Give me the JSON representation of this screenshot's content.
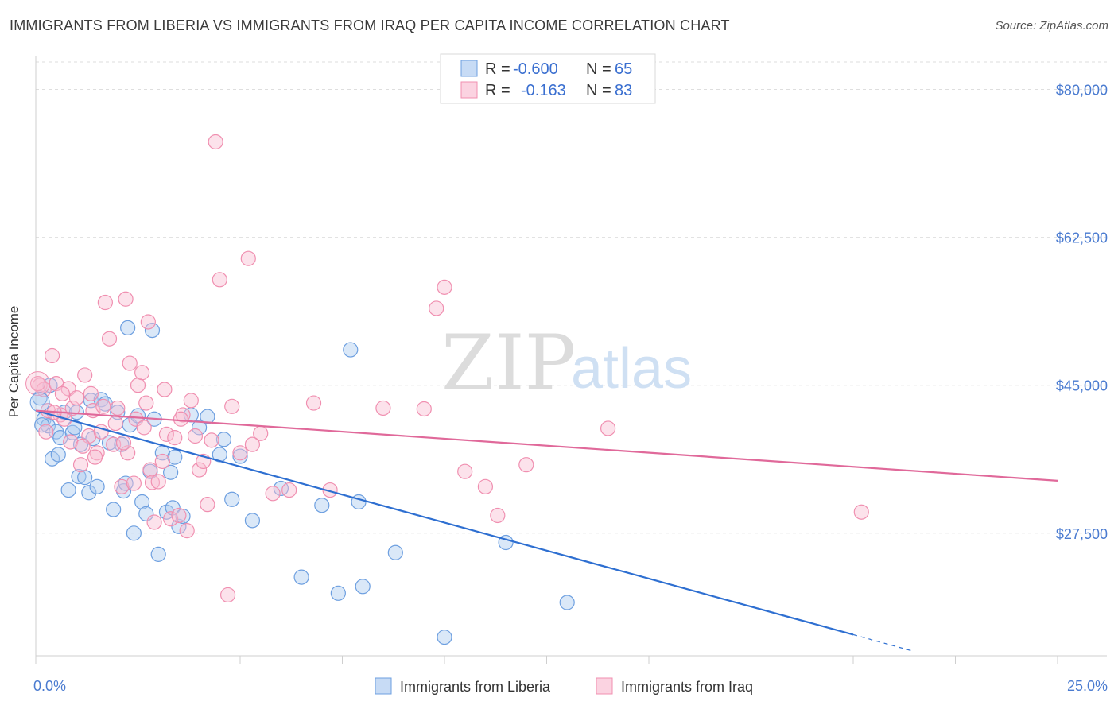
{
  "title": "IMMIGRANTS FROM LIBERIA VS IMMIGRANTS FROM IRAQ PER CAPITA INCOME CORRELATION CHART",
  "source": "Source: ZipAtlas.com",
  "watermark": {
    "zip": "ZIP",
    "atlas": "atlas"
  },
  "legend": {
    "rows": [
      {
        "r_label": "R =",
        "r_value": "-0.600",
        "n_label": "N =",
        "n_value": "65",
        "color": "#6d9fe0"
      },
      {
        "r_label": "R =",
        "r_value": "-0.163",
        "n_label": "N =",
        "n_value": "83",
        "color": "#f08fb0"
      }
    ]
  },
  "chart_data": {
    "type": "scatter",
    "title": "IMMIGRANTS FROM LIBERIA VS IMMIGRANTS FROM IRAQ PER CAPITA INCOME CORRELATION CHART",
    "xlabel": "",
    "ylabel": "Per Capita Income",
    "xlim": [
      0,
      25
    ],
    "ylim": [
      13000,
      84000
    ],
    "x_tick_labels": [
      "0.0%",
      "25.0%"
    ],
    "y_ticks": [
      27500,
      45000,
      62500,
      80000
    ],
    "y_tick_labels": [
      "$27,500",
      "$45,000",
      "$62,500",
      "$80,000"
    ],
    "grid": true,
    "legend_position": "bottom",
    "series": [
      {
        "name": "Immigrants from Liberia",
        "color": "#6d9fe0",
        "line_color": "#2e6fd1",
        "trend": {
          "x0": 0,
          "y0": 42000,
          "x1": 20,
          "y1": 15500,
          "dash_to_x": 21.5,
          "dash_to_y": 13500
        },
        "points": [
          [
            0.1,
            43.5
          ],
          [
            0.2,
            41.0
          ],
          [
            0.3,
            40.2
          ],
          [
            0.35,
            45.0
          ],
          [
            0.4,
            36.3
          ],
          [
            0.5,
            39.5
          ],
          [
            0.55,
            36.8
          ],
          [
            0.6,
            38.8
          ],
          [
            0.7,
            41.8
          ],
          [
            0.8,
            32.6
          ],
          [
            0.9,
            39.4
          ],
          [
            0.95,
            40.0
          ],
          [
            1.0,
            41.8
          ],
          [
            1.05,
            34.2
          ],
          [
            1.1,
            38.0
          ],
          [
            1.2,
            34.1
          ],
          [
            1.3,
            32.3
          ],
          [
            1.35,
            43.2
          ],
          [
            1.4,
            38.7
          ],
          [
            1.5,
            33.0
          ],
          [
            1.6,
            43.3
          ],
          [
            1.7,
            42.8
          ],
          [
            1.8,
            38.2
          ],
          [
            1.9,
            30.3
          ],
          [
            2.0,
            41.8
          ],
          [
            2.1,
            38.0
          ],
          [
            2.15,
            32.5
          ],
          [
            2.2,
            33.4
          ],
          [
            2.25,
            51.8
          ],
          [
            2.3,
            40.3
          ],
          [
            2.4,
            27.5
          ],
          [
            2.5,
            41.4
          ],
          [
            2.6,
            31.2
          ],
          [
            2.7,
            29.8
          ],
          [
            2.8,
            34.8
          ],
          [
            2.85,
            51.5
          ],
          [
            2.9,
            41.0
          ],
          [
            3.0,
            25.0
          ],
          [
            3.1,
            37.0
          ],
          [
            3.2,
            30.0
          ],
          [
            3.3,
            34.7
          ],
          [
            3.35,
            30.5
          ],
          [
            3.4,
            36.5
          ],
          [
            3.5,
            28.3
          ],
          [
            3.6,
            29.5
          ],
          [
            3.8,
            41.5
          ],
          [
            4.0,
            40.0
          ],
          [
            4.2,
            41.3
          ],
          [
            4.5,
            36.8
          ],
          [
            4.6,
            38.6
          ],
          [
            4.8,
            31.5
          ],
          [
            5.0,
            36.6
          ],
          [
            5.3,
            29.0
          ],
          [
            6.0,
            32.8
          ],
          [
            6.5,
            22.3
          ],
          [
            7.0,
            30.8
          ],
          [
            7.4,
            20.4
          ],
          [
            7.7,
            49.2
          ],
          [
            7.9,
            31.2
          ],
          [
            8.0,
            21.2
          ],
          [
            8.8,
            25.2
          ],
          [
            10.0,
            15.2
          ],
          [
            11.5,
            26.4
          ],
          [
            13.0,
            19.3
          ],
          [
            0.15,
            40.3
          ]
        ]
      },
      {
        "name": "Immigrants from Iraq",
        "color": "#f08fb0",
        "line_color": "#e0699a",
        "trend": {
          "x0": 0,
          "y0": 42000,
          "x1": 25,
          "y1": 33700
        },
        "points": [
          [
            0.1,
            45.0
          ],
          [
            0.2,
            44.5
          ],
          [
            0.3,
            42.0
          ],
          [
            0.4,
            48.5
          ],
          [
            0.5,
            45.2
          ],
          [
            0.6,
            41.5
          ],
          [
            0.7,
            41.0
          ],
          [
            0.8,
            44.6
          ],
          [
            0.9,
            42.3
          ],
          [
            1.0,
            43.5
          ],
          [
            1.1,
            35.6
          ],
          [
            1.2,
            46.2
          ],
          [
            1.3,
            39.0
          ],
          [
            1.35,
            44.0
          ],
          [
            1.4,
            42.0
          ],
          [
            1.5,
            37.0
          ],
          [
            1.6,
            39.5
          ],
          [
            1.7,
            54.8
          ],
          [
            1.8,
            50.5
          ],
          [
            1.9,
            38.0
          ],
          [
            2.0,
            42.3
          ],
          [
            2.1,
            33.0
          ],
          [
            2.2,
            55.2
          ],
          [
            2.25,
            37.0
          ],
          [
            2.3,
            47.6
          ],
          [
            2.4,
            33.4
          ],
          [
            2.5,
            45.0
          ],
          [
            2.6,
            46.5
          ],
          [
            2.7,
            42.9
          ],
          [
            2.75,
            52.5
          ],
          [
            2.8,
            35.0
          ],
          [
            2.85,
            33.5
          ],
          [
            2.9,
            28.8
          ],
          [
            3.0,
            33.6
          ],
          [
            3.1,
            36.0
          ],
          [
            3.2,
            39.2
          ],
          [
            3.3,
            29.2
          ],
          [
            3.4,
            38.8
          ],
          [
            3.5,
            29.6
          ],
          [
            3.6,
            41.5
          ],
          [
            3.7,
            27.8
          ],
          [
            3.8,
            43.2
          ],
          [
            4.0,
            35.0
          ],
          [
            4.1,
            36.0
          ],
          [
            4.2,
            30.9
          ],
          [
            4.5,
            57.5
          ],
          [
            4.7,
            20.2
          ],
          [
            5.0,
            37.0
          ],
          [
            5.2,
            60.0
          ],
          [
            5.5,
            39.3
          ],
          [
            5.8,
            32.2
          ],
          [
            6.2,
            32.6
          ],
          [
            6.8,
            42.9
          ],
          [
            7.2,
            32.6
          ],
          [
            8.5,
            42.3
          ],
          [
            9.5,
            42.2
          ],
          [
            9.8,
            54.1
          ],
          [
            10.0,
            56.6
          ],
          [
            10.5,
            34.8
          ],
          [
            11.0,
            33.0
          ],
          [
            11.3,
            29.6
          ],
          [
            12.0,
            35.6
          ],
          [
            14.0,
            39.9
          ],
          [
            20.2,
            30.0
          ],
          [
            4.4,
            73.8
          ],
          [
            0.05,
            45.2
          ],
          [
            0.25,
            39.5
          ],
          [
            0.45,
            41.8
          ],
          [
            0.65,
            44.0
          ],
          [
            0.85,
            38.3
          ],
          [
            1.15,
            37.8
          ],
          [
            1.45,
            36.5
          ],
          [
            1.65,
            42.5
          ],
          [
            1.95,
            40.5
          ],
          [
            2.15,
            38.2
          ],
          [
            2.45,
            41.0
          ],
          [
            2.65,
            40.0
          ],
          [
            3.15,
            44.5
          ],
          [
            3.55,
            41.0
          ],
          [
            3.9,
            39.0
          ],
          [
            4.3,
            38.5
          ],
          [
            4.8,
            42.5
          ],
          [
            5.3,
            38.0
          ]
        ]
      }
    ]
  },
  "bottom_legend": {
    "items": [
      {
        "label": "Immigrants from Liberia",
        "color": "#6d9fe0"
      },
      {
        "label": "Immigrants from Iraq",
        "color": "#f08fb0"
      }
    ]
  }
}
